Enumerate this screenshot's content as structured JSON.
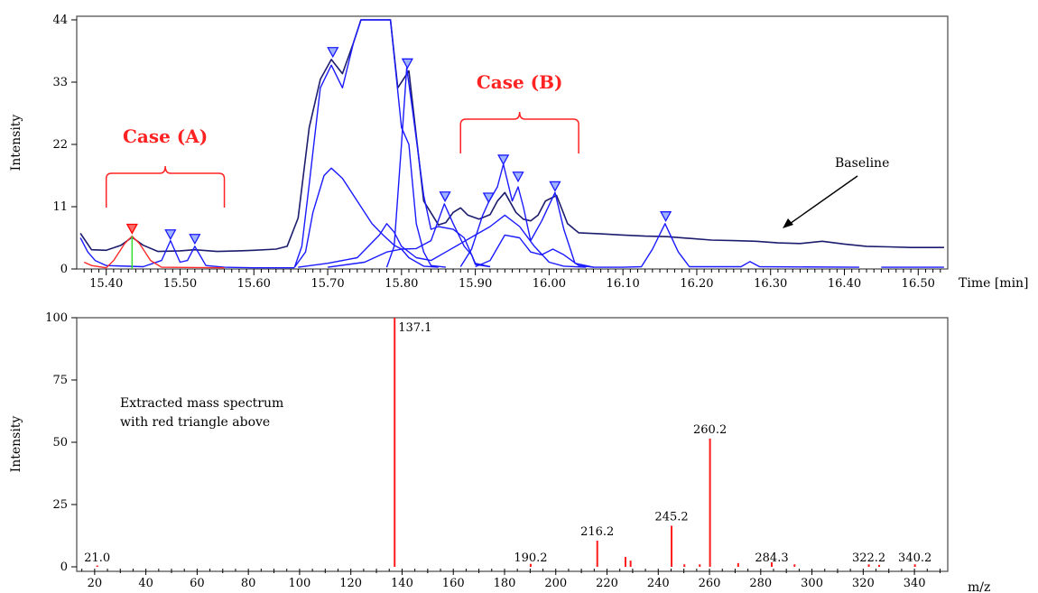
{
  "chart_data": [
    {
      "type": "line",
      "name": "chromatogram",
      "xlabel": "Time [min]",
      "ylabel": "Intensity",
      "xlim": [
        15.36,
        16.54
      ],
      "ylim": [
        0,
        44
      ],
      "xticks": [
        15.4,
        15.5,
        15.6,
        15.7,
        15.8,
        15.9,
        16.0,
        16.1,
        16.2,
        16.3,
        16.4,
        16.5
      ],
      "yticks": [
        0,
        11,
        22,
        33,
        44
      ],
      "series": [
        {
          "role": "dark",
          "points": [
            [
              15.365,
              6.3
            ],
            [
              15.38,
              3.4
            ],
            [
              15.4,
              3.3
            ],
            [
              15.42,
              4.2
            ],
            [
              15.435,
              5.6
            ],
            [
              15.45,
              4.2
            ],
            [
              15.47,
              3.1
            ],
            [
              15.5,
              3.2
            ],
            [
              15.52,
              3.4
            ],
            [
              15.55,
              3.1
            ],
            [
              15.58,
              3.2
            ],
            [
              15.6,
              3.3
            ],
            [
              15.63,
              3.5
            ],
            [
              15.645,
              4.0
            ],
            [
              15.66,
              9.0
            ],
            [
              15.675,
              25.0
            ],
            [
              15.69,
              33.5
            ],
            [
              15.705,
              37.0
            ],
            [
              15.72,
              34.5
            ],
            [
              15.735,
              40.0
            ],
            [
              15.745,
              44.0
            ],
            [
              15.785,
              44.0
            ],
            [
              15.795,
              32.0
            ],
            [
              15.81,
              35.0
            ],
            [
              15.83,
              12.0
            ],
            [
              15.85,
              7.8
            ],
            [
              15.86,
              8.2
            ],
            [
              15.87,
              10.0
            ],
            [
              15.88,
              10.8
            ],
            [
              15.89,
              9.5
            ],
            [
              15.905,
              8.8
            ],
            [
              15.92,
              9.6
            ],
            [
              15.93,
              12.0
            ],
            [
              15.94,
              13.5
            ],
            [
              15.955,
              10.0
            ],
            [
              15.965,
              8.8
            ],
            [
              15.975,
              8.5
            ],
            [
              15.985,
              9.5
            ],
            [
              15.995,
              12.0
            ],
            [
              16.01,
              13.0
            ],
            [
              16.025,
              8.0
            ],
            [
              16.04,
              6.4
            ],
            [
              16.07,
              6.2
            ],
            [
              16.1,
              6.0
            ],
            [
              16.13,
              5.8
            ],
            [
              16.16,
              5.7
            ],
            [
              16.19,
              5.4
            ],
            [
              16.22,
              5.1
            ],
            [
              16.25,
              5.0
            ],
            [
              16.28,
              4.9
            ],
            [
              16.31,
              4.6
            ],
            [
              16.34,
              4.5
            ],
            [
              16.37,
              4.9
            ],
            [
              16.4,
              4.4
            ],
            [
              16.43,
              4.0
            ],
            [
              16.46,
              3.9
            ],
            [
              16.49,
              3.8
            ],
            [
              16.535,
              3.8
            ]
          ]
        },
        {
          "role": "peaks-a",
          "points": [
            [
              15.365,
              5.5
            ],
            [
              15.375,
              3.0
            ],
            [
              15.385,
              1.5
            ],
            [
              15.4,
              0.6
            ],
            [
              15.45,
              0.4
            ],
            [
              15.475,
              1.5
            ],
            [
              15.487,
              5.0
            ],
            [
              15.5,
              1.2
            ],
            [
              15.51,
              1.5
            ],
            [
              15.52,
              4.0
            ],
            [
              15.535,
              0.6
            ],
            [
              15.56,
              0.3
            ],
            [
              15.6,
              0.2
            ],
            [
              15.655,
              0.2
            ]
          ]
        },
        {
          "role": "envelope",
          "points": [
            [
              15.655,
              0.3
            ],
            [
              15.665,
              4.0
            ],
            [
              15.675,
              15.0
            ],
            [
              15.69,
              32.0
            ],
            [
              15.705,
              36.0
            ],
            [
              15.72,
              32.0
            ],
            [
              15.735,
              40.0
            ],
            [
              15.745,
              44.0
            ],
            [
              15.785,
              44.0
            ],
            [
              15.8,
              25.0
            ],
            [
              15.81,
              22.0
            ],
            [
              15.82,
              8.0
            ],
            [
              15.83,
              3.0
            ],
            [
              15.84,
              0.6
            ],
            [
              15.86,
              0.3
            ]
          ]
        },
        {
          "role": "shoulder",
          "points": [
            [
              15.655,
              0.3
            ],
            [
              15.67,
              3.0
            ],
            [
              15.68,
              10.0
            ],
            [
              15.695,
              16.5
            ],
            [
              15.705,
              17.8
            ],
            [
              15.72,
              16.0
            ],
            [
              15.74,
              12.0
            ],
            [
              15.76,
              8.0
            ],
            [
              15.775,
              6.0
            ],
            [
              15.79,
              4.2
            ],
            [
              15.8,
              3.5
            ],
            [
              15.81,
              2.0
            ],
            [
              15.83,
              0.5
            ],
            [
              15.85,
              0.3
            ]
          ]
        },
        {
          "role": "spike",
          "points": [
            [
              15.78,
              0.3
            ],
            [
              15.79,
              4.0
            ],
            [
              15.8,
              22.0
            ],
            [
              15.807,
              35.5
            ],
            [
              15.815,
              28.0
            ],
            [
              15.83,
              13.0
            ],
            [
              15.84,
              7.0
            ],
            [
              15.85,
              7.5
            ],
            [
              15.87,
              7.0
            ],
            [
              15.885,
              5.5
            ],
            [
              15.9,
              1.0
            ],
            [
              15.92,
              0.4
            ]
          ]
        },
        {
          "role": "ramp-1",
          "points": [
            [
              15.66,
              0.3
            ],
            [
              15.7,
              1.0
            ],
            [
              15.74,
              2.0
            ],
            [
              15.77,
              6.0
            ],
            [
              15.78,
              8.0
            ],
            [
              15.79,
              6.5
            ],
            [
              15.8,
              4.0
            ],
            [
              15.82,
              2.0
            ],
            [
              15.84,
              1.5
            ],
            [
              15.86,
              3.0
            ],
            [
              15.88,
              4.5
            ],
            [
              15.9,
              6.0
            ],
            [
              15.92,
              7.5
            ],
            [
              15.94,
              9.5
            ],
            [
              15.96,
              7.5
            ],
            [
              15.98,
              4.0
            ],
            [
              16.0,
              1.2
            ],
            [
              16.02,
              0.5
            ],
            [
              16.05,
              0.3
            ]
          ]
        },
        {
          "role": "ramp-2",
          "points": [
            [
              15.7,
              0.3
            ],
            [
              15.75,
              1.2
            ],
            [
              15.78,
              3.0
            ],
            [
              15.8,
              3.5
            ],
            [
              15.82,
              3.6
            ],
            [
              15.84,
              5.0
            ],
            [
              15.858,
              11.5
            ],
            [
              15.87,
              8.0
            ],
            [
              15.885,
              4.0
            ],
            [
              15.895,
              2.5
            ],
            [
              15.9,
              0.8
            ],
            [
              15.92,
              0.4
            ]
          ]
        },
        {
          "role": "case-b-peaks",
          "points": [
            [
              15.88,
              0.4
            ],
            [
              15.895,
              3.5
            ],
            [
              15.91,
              9.5
            ],
            [
              15.918,
              11.8
            ],
            [
              15.93,
              14.5
            ],
            [
              15.938,
              18.5
            ],
            [
              15.95,
              12.0
            ],
            [
              15.958,
              14.5
            ],
            [
              15.965,
              11.0
            ],
            [
              15.975,
              5.0
            ],
            [
              15.99,
              8.5
            ],
            [
              16.008,
              13.5
            ],
            [
              16.02,
              7.0
            ],
            [
              16.035,
              1.0
            ],
            [
              16.06,
              0.3
            ],
            [
              16.1,
              0.3
            ],
            [
              16.125,
              0.4
            ],
            [
              16.14,
              3.5
            ],
            [
              16.157,
              8.0
            ],
            [
              16.175,
              3.0
            ],
            [
              16.19,
              0.4
            ],
            [
              16.26,
              0.4
            ],
            [
              16.272,
              1.3
            ],
            [
              16.285,
              0.4
            ],
            [
              16.42,
              0.3
            ]
          ]
        },
        {
          "role": "case-b-lower",
          "points": [
            [
              15.9,
              0.4
            ],
            [
              15.92,
              1.5
            ],
            [
              15.94,
              6.0
            ],
            [
              15.96,
              5.5
            ],
            [
              15.975,
              3.0
            ],
            [
              15.99,
              2.5
            ],
            [
              16.005,
              3.5
            ],
            [
              16.02,
              2.5
            ],
            [
              16.04,
              0.6
            ],
            [
              16.06,
              0.3
            ]
          ]
        },
        {
          "role": "tail",
          "points": [
            [
              16.45,
              0.3
            ],
            [
              16.535,
              0.3
            ]
          ]
        },
        {
          "role": "red-peak",
          "points": [
            [
              15.37,
              1.2
            ],
            [
              15.38,
              0.6
            ],
            [
              15.4,
              0.2
            ],
            [
              15.41,
              1.5
            ],
            [
              15.425,
              4.5
            ],
            [
              15.435,
              5.8
            ],
            [
              15.445,
              4.5
            ],
            [
              15.46,
              1.5
            ],
            [
              15.475,
              0.3
            ],
            [
              15.56,
              0.2
            ]
          ]
        }
      ],
      "peak_markers": [
        15.435,
        15.487,
        15.52,
        15.707,
        15.808,
        15.859,
        15.918,
        15.938,
        15.958,
        16.008,
        16.158
      ],
      "peak_marker_values": [
        6.3,
        5.3,
        4.5,
        37.5,
        35.5,
        12.0,
        11.8,
        18.5,
        15.5,
        13.8,
        8.5
      ],
      "red_marker_index": 0,
      "selected_time": 15.435,
      "case_a": {
        "label": "Case (A)",
        "range": [
          15.4,
          15.56
        ]
      },
      "case_b": {
        "label": "Case (B)",
        "range": [
          15.88,
          16.04
        ]
      },
      "baseline_label": "Baseline"
    },
    {
      "type": "bar",
      "name": "mass-spectrum",
      "xlabel": "m/z",
      "ylabel": "Intensity",
      "xlim": [
        13,
        353
      ],
      "ylim": [
        0,
        100
      ],
      "xticks": [
        20,
        40,
        60,
        80,
        100,
        120,
        140,
        160,
        180,
        200,
        220,
        240,
        260,
        280,
        300,
        320,
        340
      ],
      "yticks": [
        0,
        25,
        50,
        75,
        100
      ],
      "annotation": [
        "Extracted mass spectrum",
        "with red triangle above"
      ],
      "peaks": [
        {
          "mz": 21.0,
          "intensity": 0.5,
          "label": "21.0"
        },
        {
          "mz": 137.1,
          "intensity": 100,
          "label": "137.1"
        },
        {
          "mz": 190.2,
          "intensity": 1.2,
          "label": "190.2"
        },
        {
          "mz": 216.2,
          "intensity": 10.5,
          "label": "216.2"
        },
        {
          "mz": 227.2,
          "intensity": 4.0,
          "label": ""
        },
        {
          "mz": 229.2,
          "intensity": 2.5,
          "label": ""
        },
        {
          "mz": 245.2,
          "intensity": 16.5,
          "label": "245.2"
        },
        {
          "mz": 250.2,
          "intensity": 1.0,
          "label": ""
        },
        {
          "mz": 256.2,
          "intensity": 1.0,
          "label": ""
        },
        {
          "mz": 260.2,
          "intensity": 51.5,
          "label": "260.2"
        },
        {
          "mz": 271.2,
          "intensity": 1.5,
          "label": ""
        },
        {
          "mz": 284.3,
          "intensity": 1.8,
          "label": "284.3"
        },
        {
          "mz": 293.2,
          "intensity": 1.0,
          "label": ""
        },
        {
          "mz": 322.2,
          "intensity": 1.0,
          "label": "322.2"
        },
        {
          "mz": 326.2,
          "intensity": 0.8,
          "label": ""
        },
        {
          "mz": 340.2,
          "intensity": 1.0,
          "label": "340.2"
        }
      ]
    }
  ],
  "colors": {
    "trace": "#1a1aff",
    "trace_dark": "#1c1c6e",
    "highlight": "#ff2222",
    "selection_line": "#33dd33"
  }
}
